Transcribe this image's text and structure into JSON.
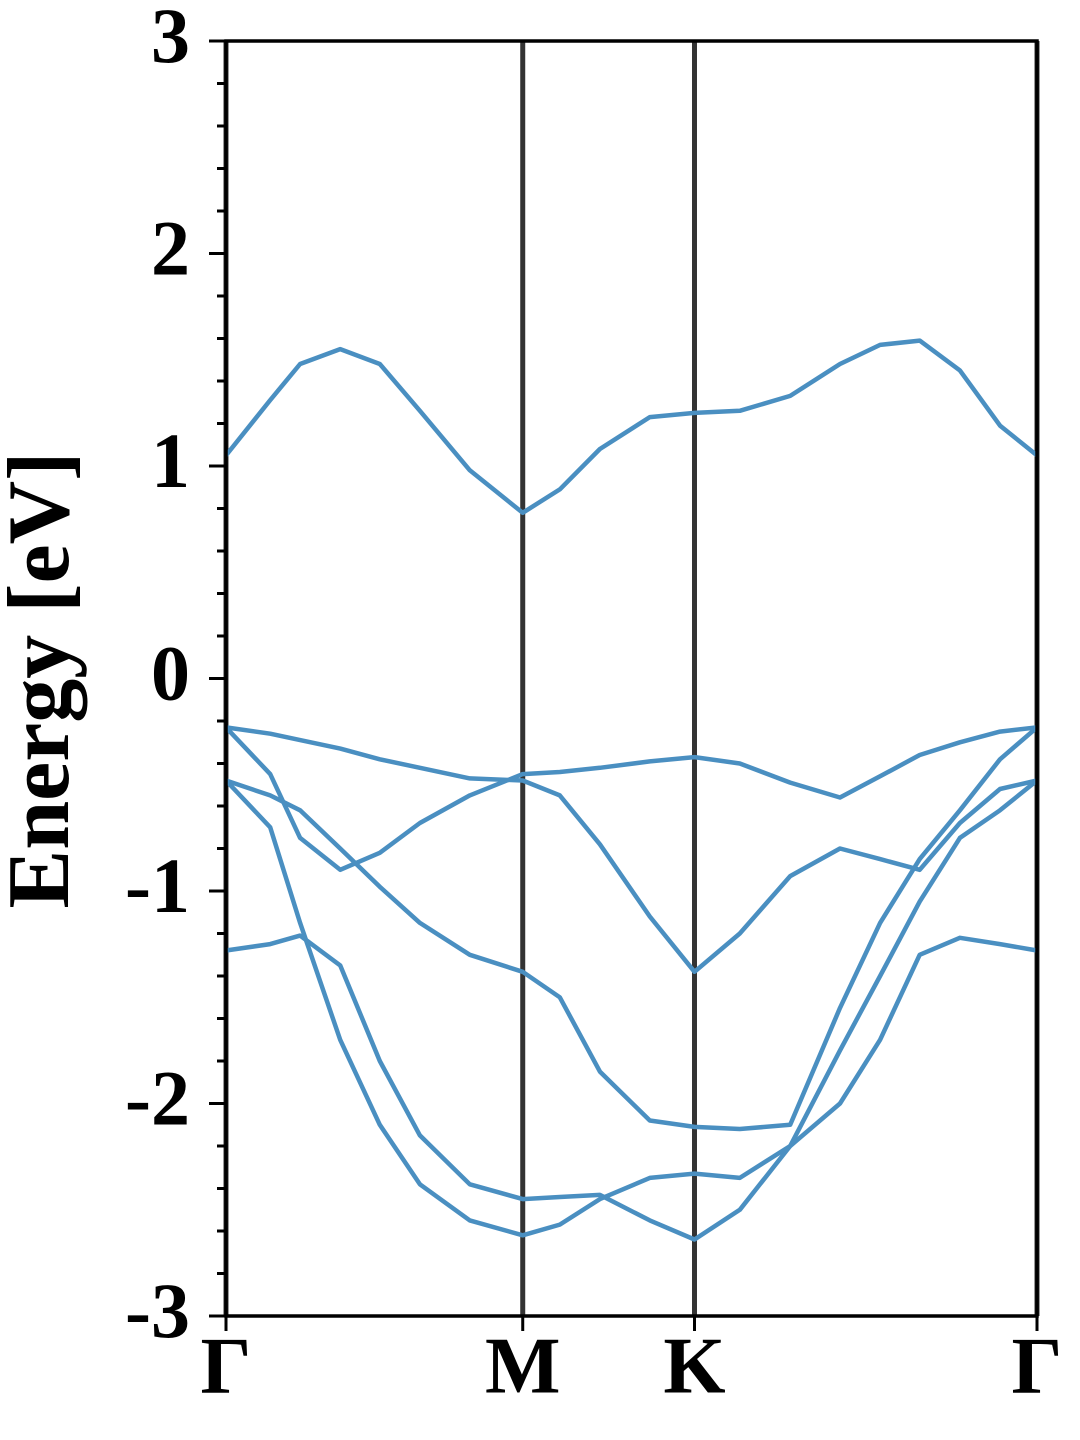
{
  "chart_data": {
    "type": "line",
    "ylabel": "Energy [eV]",
    "x": [
      0,
      0.086,
      0.144,
      0.222,
      0.299,
      0.377,
      0.474,
      0.577,
      0.649,
      0.727,
      0.824,
      0.911,
      0.999,
      1.097,
      1.194,
      1.272,
      1.349,
      1.427,
      1.505,
      1.577
    ],
    "xlim": [
      0,
      1.577
    ],
    "xticks": [
      {
        "value": 0,
        "label": "Γ"
      },
      {
        "value": 0.577,
        "label": "M"
      },
      {
        "value": 0.911,
        "label": "K"
      },
      {
        "value": 1.577,
        "label": "Γ"
      }
    ],
    "ylim": [
      -3,
      3
    ],
    "yticks": [
      -3,
      -2,
      -1,
      0,
      1,
      2,
      3
    ],
    "minor_yticks": [
      -2.8,
      -2.6,
      -2.4,
      -2.2,
      -1.8,
      -1.6,
      -1.4,
      -1.2,
      -0.8,
      -0.6,
      -0.4,
      -0.2,
      0.2,
      0.4,
      0.6,
      0.8,
      1.2,
      1.4,
      1.6,
      1.8,
      2.2,
      2.4,
      2.6,
      2.8
    ],
    "grid_x": true,
    "color": "#4a8fc1",
    "series": [
      {
        "values": [
          1.05,
          1.31,
          1.48,
          1.55,
          1.48,
          1.26,
          0.98,
          0.78,
          0.89,
          1.08,
          1.23,
          1.25,
          1.26,
          1.33,
          1.48,
          1.57,
          1.59,
          1.45,
          1.19,
          1.05
        ]
      },
      {
        "values": [
          -0.23,
          -0.45,
          -0.75,
          -0.9,
          -0.82,
          -0.68,
          -0.55,
          -0.45,
          -0.44,
          -0.42,
          -0.39,
          -0.37,
          -0.4,
          -0.49,
          -0.56,
          -0.46,
          -0.36,
          -0.3,
          -0.25,
          -0.23
        ]
      },
      {
        "values": [
          -0.23,
          -0.26,
          -0.29,
          -0.33,
          -0.38,
          -0.42,
          -0.47,
          -0.48,
          -0.55,
          -0.78,
          -1.12,
          -1.38,
          -1.2,
          -0.93,
          -0.8,
          -0.85,
          -0.9,
          -0.68,
          -0.52,
          -0.48
        ]
      },
      {
        "values": [
          -0.48,
          -0.55,
          -0.62,
          -0.8,
          -0.98,
          -1.15,
          -1.3,
          -1.38,
          -1.5,
          -1.85,
          -2.08,
          -2.11,
          -2.12,
          -2.1,
          -1.55,
          -1.15,
          -0.85,
          -0.62,
          -0.38,
          -0.23
        ]
      },
      {
        "values": [
          -1.28,
          -1.25,
          -1.21,
          -1.35,
          -1.8,
          -2.15,
          -2.38,
          -2.45,
          -2.44,
          -2.43,
          -2.55,
          -2.64,
          -2.5,
          -2.2,
          -2.0,
          -1.7,
          -1.3,
          -1.22,
          -1.25,
          -1.28
        ]
      },
      {
        "values": [
          -0.48,
          -0.7,
          -1.15,
          -1.7,
          -2.1,
          -2.38,
          -2.55,
          -2.62,
          -2.57,
          -2.45,
          -2.35,
          -2.33,
          -2.35,
          -2.2,
          -1.75,
          -1.4,
          -1.05,
          -0.75,
          -0.62,
          -0.48
        ]
      }
    ]
  }
}
